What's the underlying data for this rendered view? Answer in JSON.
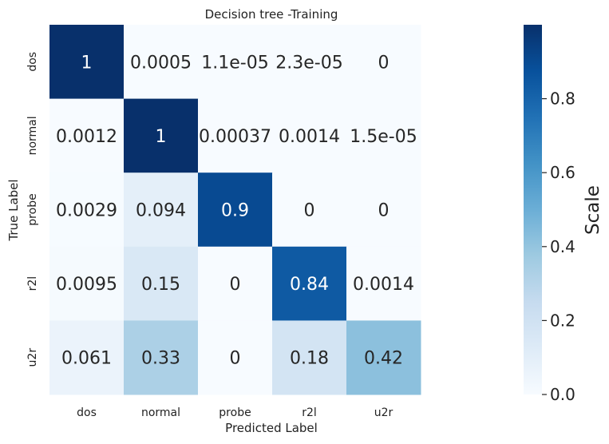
{
  "chart_data": {
    "type": "heatmap",
    "title": "Decision tree -Training",
    "xlabel": "Predicted Label",
    "ylabel": "True Label",
    "x_categories": [
      "dos",
      "normal",
      "probe",
      "r2l",
      "u2r"
    ],
    "y_categories": [
      "dos",
      "normal",
      "probe",
      "r2l",
      "u2r"
    ],
    "values": [
      [
        1,
        0.0005,
        1.1e-05,
        2.3e-05,
        0
      ],
      [
        0.0012,
        1,
        0.00037,
        0.0014,
        1.5e-05
      ],
      [
        0.0029,
        0.094,
        0.9,
        0,
        0
      ],
      [
        0.0095,
        0.15,
        0,
        0.84,
        0.0014
      ],
      [
        0.061,
        0.33,
        0,
        0.18,
        0.42
      ]
    ],
    "annotations": [
      [
        "1",
        "0.0005",
        "1.1e-05",
        "2.3e-05",
        "0"
      ],
      [
        "0.0012",
        "1",
        "0.00037",
        "0.0014",
        "1.5e-05"
      ],
      [
        "0.0029",
        "0.094",
        "0.9",
        "0",
        "0"
      ],
      [
        "0.0095",
        "0.15",
        "0",
        "0.84",
        "0.0014"
      ],
      [
        "0.061",
        "0.33",
        "0",
        "0.18",
        "0.42"
      ]
    ],
    "colormap": "Blues",
    "colorbar": {
      "label": "Scale",
      "ticks": [
        0.0,
        0.2,
        0.4,
        0.6,
        0.8
      ],
      "tick_labels": [
        "0.0",
        "0.2",
        "0.4",
        "0.6",
        "0.8"
      ],
      "range": [
        0,
        1
      ]
    }
  }
}
